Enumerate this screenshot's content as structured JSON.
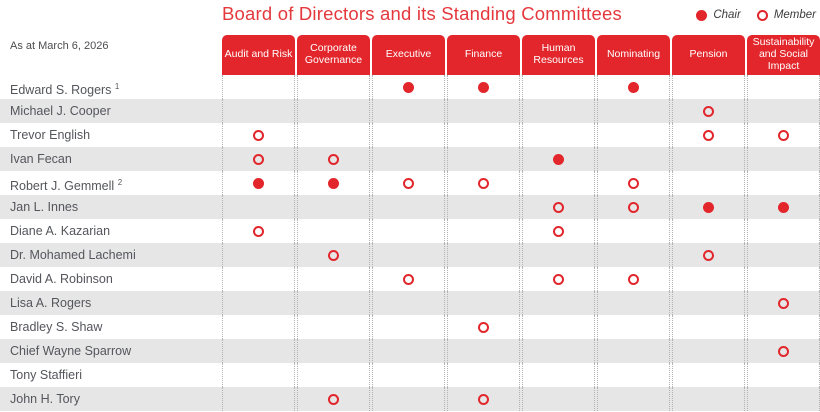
{
  "title": "Board of Directors and its Standing Committees",
  "as_at_label": "As at March 6, 2026",
  "legend": {
    "chair_label": "Chair",
    "member_label": "Member"
  },
  "colors": {
    "brand_red": "#E2262B",
    "title_red": "#E4383D",
    "row_alt_gray": "#E6E6E6",
    "name_text_gray": "#54565B"
  },
  "chart_data": {
    "type": "table",
    "title": "Board of Directors and its Standing Committees",
    "legend": {
      "filled_circle": "Chair",
      "open_circle": "Member"
    },
    "columns": [
      "Audit and Risk",
      "Corporate Governance",
      "Executive",
      "Finance",
      "Human Resources",
      "Nominating",
      "Pension",
      "Sustainability and Social Impact"
    ],
    "rows": [
      {
        "name": "Edward S. Rogers",
        "footnote": "1",
        "roles": [
          "",
          "",
          "chair",
          "chair",
          "",
          "chair",
          "",
          ""
        ]
      },
      {
        "name": "Michael J. Cooper",
        "footnote": "",
        "roles": [
          "",
          "",
          "",
          "",
          "",
          "",
          "member",
          ""
        ]
      },
      {
        "name": "Trevor English",
        "footnote": "",
        "roles": [
          "member",
          "",
          "",
          "",
          "",
          "",
          "member",
          "member"
        ]
      },
      {
        "name": "Ivan Fecan",
        "footnote": "",
        "roles": [
          "member",
          "member",
          "",
          "",
          "chair",
          "",
          "",
          ""
        ]
      },
      {
        "name": "Robert J. Gemmell",
        "footnote": "2",
        "roles": [
          "chair",
          "chair",
          "member",
          "member",
          "",
          "member",
          "",
          ""
        ]
      },
      {
        "name": "Jan L. Innes",
        "footnote": "",
        "roles": [
          "",
          "",
          "",
          "",
          "member",
          "member",
          "chair",
          "chair"
        ]
      },
      {
        "name": "Diane A. Kazarian",
        "footnote": "",
        "roles": [
          "member",
          "",
          "",
          "",
          "member",
          "",
          "",
          ""
        ]
      },
      {
        "name": "Dr. Mohamed Lachemi",
        "footnote": "",
        "roles": [
          "",
          "member",
          "",
          "",
          "",
          "",
          "member",
          ""
        ]
      },
      {
        "name": "David A. Robinson",
        "footnote": "",
        "roles": [
          "",
          "",
          "member",
          "",
          "member",
          "member",
          "",
          ""
        ]
      },
      {
        "name": "Lisa A. Rogers",
        "footnote": "",
        "roles": [
          "",
          "",
          "",
          "",
          "",
          "",
          "",
          "member"
        ]
      },
      {
        "name": "Bradley S. Shaw",
        "footnote": "",
        "roles": [
          "",
          "",
          "",
          "member",
          "",
          "",
          "",
          ""
        ]
      },
      {
        "name": "Chief Wayne Sparrow",
        "footnote": "",
        "roles": [
          "",
          "",
          "",
          "",
          "",
          "",
          "",
          "member"
        ]
      },
      {
        "name": "Tony Staffieri",
        "footnote": "",
        "roles": [
          "",
          "",
          "",
          "",
          "",
          "",
          "",
          ""
        ]
      },
      {
        "name": "John H. Tory",
        "footnote": "",
        "roles": [
          "",
          "member",
          "",
          "member",
          "",
          "",
          "",
          ""
        ]
      }
    ]
  }
}
